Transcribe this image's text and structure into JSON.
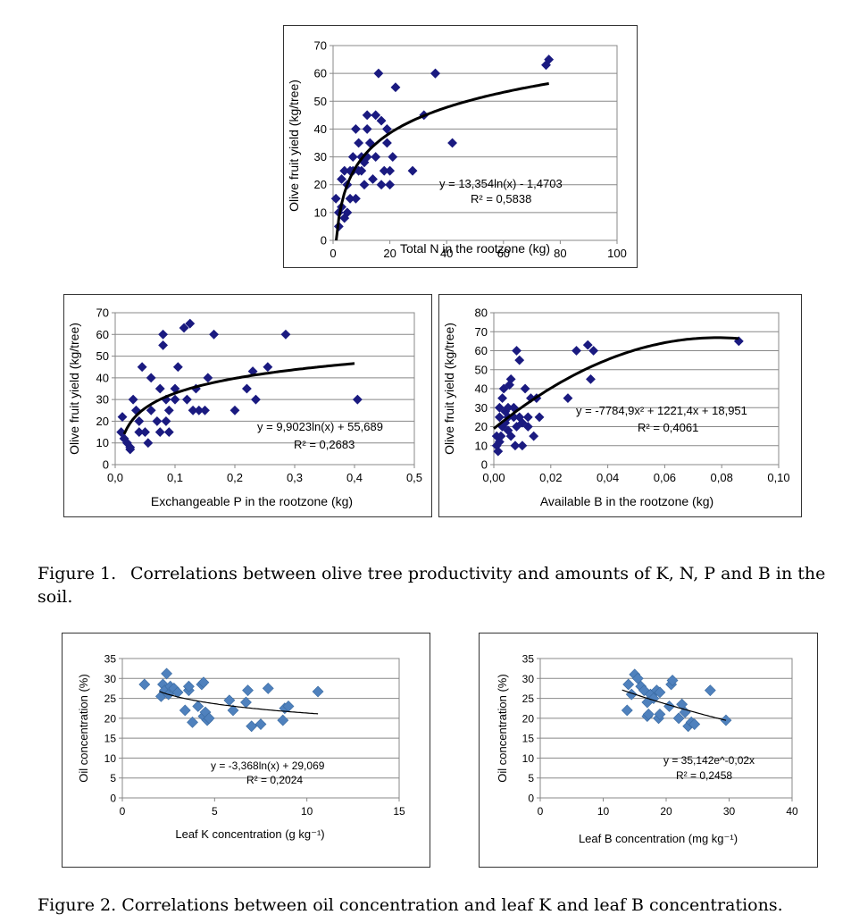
{
  "figure1": {
    "label": "Figure 1.",
    "caption": "Correlations between olive tree productivity and amounts of K, N, P and B in the soil."
  },
  "figure2": {
    "caption": "Figure 2. Correlations between oil concentration and leaf K and leaf B concentrations."
  },
  "chart_data": [
    {
      "id": "n",
      "type": "scatter",
      "xlabel": "Total N in the rootzone (kg)",
      "ylabel": "Olive fruit yield (kg/tree)",
      "xlim": [
        0,
        100
      ],
      "ylim": [
        0,
        70
      ],
      "xticks": [
        "0",
        "20",
        "40",
        "60",
        "80",
        "100"
      ],
      "yticks": [
        "0",
        "10",
        "20",
        "30",
        "40",
        "50",
        "60",
        "70"
      ],
      "grid": "horizontal",
      "marker": "diamond",
      "color": "#1a1a80",
      "equation": "y = 13,354ln(x) - 1,4703",
      "r2": "R² = 0,5838",
      "trend": {
        "kind": "log",
        "a": 13.354,
        "b": -1.4703,
        "xmin": 1.1,
        "xmax": 76
      },
      "points": [
        [
          1,
          15
        ],
        [
          2,
          10
        ],
        [
          2,
          5
        ],
        [
          3,
          22
        ],
        [
          3,
          12
        ],
        [
          4,
          25
        ],
        [
          4,
          8
        ],
        [
          5,
          10
        ],
        [
          5,
          20
        ],
        [
          6,
          25
        ],
        [
          6,
          15
        ],
        [
          7,
          30
        ],
        [
          7,
          25
        ],
        [
          8,
          15
        ],
        [
          8,
          40
        ],
        [
          9,
          25
        ],
        [
          9,
          35
        ],
        [
          10,
          30
        ],
        [
          10,
          25
        ],
        [
          11,
          28
        ],
        [
          11,
          20
        ],
        [
          12,
          45
        ],
        [
          12,
          40
        ],
        [
          12,
          30
        ],
        [
          13,
          35
        ],
        [
          14,
          22
        ],
        [
          15,
          45
        ],
        [
          15,
          30
        ],
        [
          16,
          60
        ],
        [
          17,
          43
        ],
        [
          17,
          20
        ],
        [
          18,
          25
        ],
        [
          19,
          35
        ],
        [
          19,
          40
        ],
        [
          20,
          20
        ],
        [
          20,
          25
        ],
        [
          21,
          30
        ],
        [
          22,
          55
        ],
        [
          28,
          25
        ],
        [
          32,
          45
        ],
        [
          36,
          60
        ],
        [
          36,
          60
        ],
        [
          42,
          35
        ],
        [
          75,
          63
        ],
        [
          76,
          65
        ]
      ]
    },
    {
      "id": "p",
      "type": "scatter",
      "xlabel": "Exchangeable P in the rootzone (kg)",
      "ylabel": "Olive fruit yield (kg/tree)",
      "xlim": [
        0,
        0.5
      ],
      "ylim": [
        0,
        70
      ],
      "xticks": [
        "0,0",
        "0,1",
        "0,2",
        "0,3",
        "0,4",
        "0,5"
      ],
      "yticks": [
        "0",
        "10",
        "20",
        "30",
        "40",
        "50",
        "60",
        "70"
      ],
      "grid": "horizontal",
      "marker": "diamond",
      "color": "#1a1a80",
      "equation": "y = 9,9023ln(x) + 55,689",
      "r2": "R² = 0,2683",
      "trend": {
        "kind": "log",
        "a": 9.9023,
        "b": 55.689,
        "xmin": 0.015,
        "xmax": 0.4
      },
      "points": [
        [
          0.01,
          15
        ],
        [
          0.012,
          22
        ],
        [
          0.015,
          12
        ],
        [
          0.02,
          10
        ],
        [
          0.025,
          7
        ],
        [
          0.025,
          8
        ],
        [
          0.03,
          30
        ],
        [
          0.035,
          25
        ],
        [
          0.04,
          20
        ],
        [
          0.04,
          15
        ],
        [
          0.045,
          45
        ],
        [
          0.05,
          15
        ],
        [
          0.055,
          10
        ],
        [
          0.06,
          25
        ],
        [
          0.06,
          40
        ],
        [
          0.07,
          20
        ],
        [
          0.075,
          35
        ],
        [
          0.075,
          15
        ],
        [
          0.08,
          55
        ],
        [
          0.08,
          60
        ],
        [
          0.085,
          20
        ],
        [
          0.085,
          30
        ],
        [
          0.09,
          15
        ],
        [
          0.09,
          25
        ],
        [
          0.1,
          30
        ],
        [
          0.1,
          35
        ],
        [
          0.105,
          45
        ],
        [
          0.115,
          63
        ],
        [
          0.12,
          30
        ],
        [
          0.125,
          65
        ],
        [
          0.13,
          25
        ],
        [
          0.135,
          35
        ],
        [
          0.14,
          25
        ],
        [
          0.15,
          25
        ],
        [
          0.155,
          40
        ],
        [
          0.165,
          60
        ],
        [
          0.2,
          25
        ],
        [
          0.22,
          35
        ],
        [
          0.23,
          43
        ],
        [
          0.235,
          30
        ],
        [
          0.255,
          45
        ],
        [
          0.285,
          60
        ],
        [
          0.405,
          30
        ]
      ]
    },
    {
      "id": "b",
      "type": "scatter",
      "xlabel": "Available B in the rootzone (kg)",
      "ylabel": "Olive fruit yield (kg/tree)",
      "xlim": [
        0,
        0.1
      ],
      "ylim": [
        0,
        80
      ],
      "xticks": [
        "0,00",
        "0,02",
        "0,04",
        "0,06",
        "0,08",
        "0,10"
      ],
      "yticks": [
        "0",
        "10",
        "20",
        "30",
        "40",
        "50",
        "60",
        "70",
        "80"
      ],
      "grid": "horizontal",
      "marker": "diamond",
      "color": "#1a1a80",
      "equation": "y = -7784,9x² + 1221,4x + 18,951",
      "r2": "R² = 0,4061",
      "trend": {
        "kind": "poly2",
        "a": -7784.9,
        "b": 1221.4,
        "c": 18.951,
        "xmin": 0.0,
        "xmax": 0.086
      },
      "points": [
        [
          0.001,
          10
        ],
        [
          0.001,
          15
        ],
        [
          0.0015,
          7
        ],
        [
          0.002,
          12
        ],
        [
          0.002,
          25
        ],
        [
          0.002,
          30
        ],
        [
          0.0025,
          15
        ],
        [
          0.003,
          20
        ],
        [
          0.003,
          35
        ],
        [
          0.0035,
          40
        ],
        [
          0.004,
          28
        ],
        [
          0.004,
          22
        ],
        [
          0.005,
          18
        ],
        [
          0.005,
          25
        ],
        [
          0.005,
          30
        ],
        [
          0.0055,
          42
        ],
        [
          0.006,
          15
        ],
        [
          0.006,
          45
        ],
        [
          0.007,
          25
        ],
        [
          0.007,
          30
        ],
        [
          0.0075,
          10
        ],
        [
          0.008,
          60
        ],
        [
          0.008,
          20
        ],
        [
          0.009,
          25
        ],
        [
          0.009,
          55
        ],
        [
          0.01,
          10
        ],
        [
          0.01,
          22
        ],
        [
          0.011,
          40
        ],
        [
          0.012,
          20
        ],
        [
          0.012,
          25
        ],
        [
          0.013,
          35
        ],
        [
          0.014,
          15
        ],
        [
          0.015,
          35
        ],
        [
          0.016,
          25
        ],
        [
          0.026,
          35
        ],
        [
          0.029,
          60
        ],
        [
          0.033,
          63
        ],
        [
          0.034,
          45
        ],
        [
          0.035,
          60
        ],
        [
          0.086,
          65
        ]
      ]
    },
    {
      "id": "k",
      "type": "scatter",
      "xlabel": "Leaf K concentration (g kg⁻¹)",
      "ylabel": "Oil concentration (%)",
      "xlim": [
        0,
        15
      ],
      "ylim": [
        0,
        35
      ],
      "xticks": [
        "0",
        "5",
        "10",
        "15"
      ],
      "yticks": [
        "0",
        "5",
        "10",
        "15",
        "20",
        "25",
        "30",
        "35"
      ],
      "grid": "horizontal",
      "marker": "diamond",
      "color": "#4f81bd",
      "equation": "y = -3,368ln(x) + 29,069",
      "r2": "R² = 0,2024",
      "trend": {
        "kind": "log",
        "a": -3.368,
        "b": 29.069,
        "xmin": 2,
        "xmax": 10.6
      },
      "points": [
        [
          1.2,
          28.5
        ],
        [
          2.1,
          25.5
        ],
        [
          2.2,
          28.5
        ],
        [
          2.3,
          27
        ],
        [
          2.4,
          31.2
        ],
        [
          2.5,
          26
        ],
        [
          2.6,
          28
        ],
        [
          2.8,
          27.5
        ],
        [
          3,
          26.5
        ],
        [
          3.4,
          22
        ],
        [
          3.6,
          27
        ],
        [
          3.6,
          28
        ],
        [
          3.8,
          19
        ],
        [
          4.1,
          23
        ],
        [
          4.3,
          28.5
        ],
        [
          4.4,
          29
        ],
        [
          4.4,
          20.5
        ],
        [
          4.5,
          21.5
        ],
        [
          4.6,
          19.5
        ],
        [
          4.7,
          20
        ],
        [
          5.8,
          24.5
        ],
        [
          6,
          22
        ],
        [
          6.7,
          24
        ],
        [
          6.8,
          27
        ],
        [
          7,
          18
        ],
        [
          7.5,
          18.5
        ],
        [
          7.9,
          27.5
        ],
        [
          8.7,
          19.5
        ],
        [
          8.8,
          22.5
        ],
        [
          9,
          23
        ],
        [
          10.6,
          26.7
        ]
      ]
    },
    {
      "id": "lb",
      "type": "scatter",
      "xlabel": "Leaf B concentration (mg kg⁻¹)",
      "ylabel": "Oil concentration (%)",
      "xlim": [
        0,
        40
      ],
      "ylim": [
        0,
        35
      ],
      "xticks": [
        "0",
        "10",
        "20",
        "30",
        "40"
      ],
      "yticks": [
        "0",
        "5",
        "10",
        "15",
        "20",
        "25",
        "30",
        "35"
      ],
      "grid": "horizontal",
      "marker": "diamond",
      "color": "#4f81bd",
      "equation": "y = 35,142e^-0,02x",
      "r2": "R² = 0,2458",
      "trend": {
        "kind": "exp",
        "a": 35.142,
        "k": -0.02,
        "xmin": 13,
        "xmax": 29.5
      },
      "points": [
        [
          13.8,
          22
        ],
        [
          14,
          28.5
        ],
        [
          14.5,
          26
        ],
        [
          15,
          31
        ],
        [
          15.5,
          30
        ],
        [
          16,
          28
        ],
        [
          16.5,
          27
        ],
        [
          17,
          20.5
        ],
        [
          17,
          24
        ],
        [
          17.2,
          21
        ],
        [
          17.5,
          26
        ],
        [
          18,
          25
        ],
        [
          18.5,
          27
        ],
        [
          18.8,
          20
        ],
        [
          19,
          21
        ],
        [
          19,
          26.5
        ],
        [
          20.5,
          23
        ],
        [
          20.8,
          28.5
        ],
        [
          21,
          29.5
        ],
        [
          22,
          20
        ],
        [
          22.5,
          23.5
        ],
        [
          23,
          21.5
        ],
        [
          23.5,
          18
        ],
        [
          24,
          19
        ],
        [
          24.5,
          18.5
        ],
        [
          27,
          27
        ],
        [
          29.5,
          19.5
        ]
      ]
    }
  ]
}
